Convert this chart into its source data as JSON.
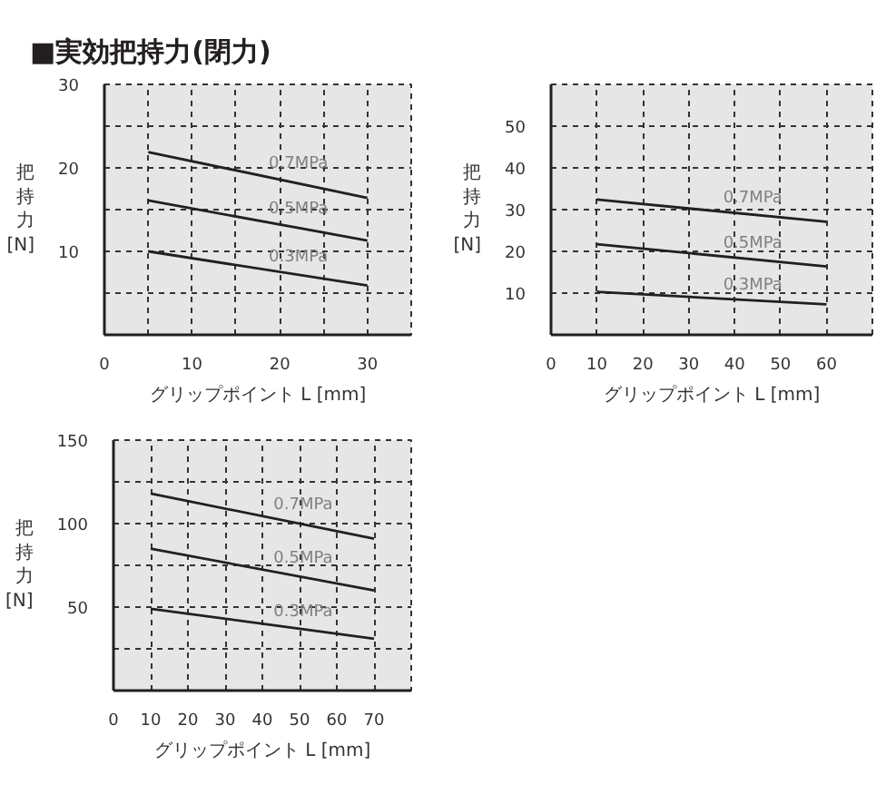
{
  "chart_data": [
    {
      "type": "line",
      "title": "■実効把持力(閉力)",
      "xlabel": "グリップポイント L [mm]",
      "ylabel": "把持力 [N]",
      "xlim": [
        0,
        35
      ],
      "ylim": [
        0,
        30
      ],
      "xticks": [
        0,
        {
          "value": 5,
          "label": null
        },
        10,
        {
          "value": 15,
          "label": null
        },
        20,
        {
          "value": 25,
          "label": null
        },
        30,
        {
          "value": 35,
          "label": null
        }
      ],
      "yticks": [
        {
          "value": 5,
          "label": null
        },
        10,
        {
          "value": 15,
          "label": null
        },
        20,
        {
          "value": 25,
          "label": null
        },
        30
      ],
      "grid": true,
      "x": [
        5,
        30
      ],
      "series": [
        {
          "name": "0.7MPa",
          "color": "#231f20",
          "values": [
            21.9,
            16.4
          ]
        },
        {
          "name": "0.5MPa",
          "color": "#231f20",
          "values": [
            16.1,
            11.3
          ]
        },
        {
          "name": "0.3MPa",
          "color": "#231f20",
          "values": [
            10.0,
            5.9
          ]
        }
      ]
    },
    {
      "type": "line",
      "xlabel": "グリップポイント L [mm]",
      "ylabel": "把持力 [N]",
      "xlim": [
        0,
        70
      ],
      "ylim": [
        0,
        60
      ],
      "xticks": [
        0,
        10,
        20,
        30,
        40,
        50,
        60,
        {
          "value": 70,
          "label": null
        }
      ],
      "yticks": [
        10,
        20,
        30,
        40,
        50,
        {
          "value": 60,
          "label": null
        }
      ],
      "grid": true,
      "x": [
        10,
        60
      ],
      "series": [
        {
          "name": "0.7MPa",
          "color": "#231f20",
          "values": [
            32.4,
            27.1
          ]
        },
        {
          "name": "0.5MPa",
          "color": "#231f20",
          "values": [
            21.7,
            16.4
          ]
        },
        {
          "name": "0.3MPa",
          "color": "#231f20",
          "values": [
            10.3,
            7.3
          ]
        }
      ]
    },
    {
      "type": "line",
      "xlabel": "グリップポイント L [mm]",
      "ylabel": "把持力 [N]",
      "xlim": [
        0,
        80
      ],
      "ylim": [
        0,
        150
      ],
      "xticks": [
        0,
        10,
        20,
        30,
        40,
        50,
        60,
        70,
        {
          "value": 80,
          "label": null
        }
      ],
      "yticks": [
        {
          "value": 25,
          "label": null
        },
        50,
        {
          "value": 75,
          "label": null
        },
        100,
        {
          "value": 125,
          "label": null
        },
        150
      ],
      "grid": true,
      "x": [
        10,
        70
      ],
      "series": [
        {
          "name": "0.7MPa",
          "color": "#231f20",
          "values": [
            118,
            91
          ]
        },
        {
          "name": "0.5MPa",
          "color": "#231f20",
          "values": [
            85,
            60
          ]
        },
        {
          "name": "0.3MPa",
          "color": "#231f20",
          "values": [
            49,
            31
          ]
        }
      ]
    }
  ]
}
